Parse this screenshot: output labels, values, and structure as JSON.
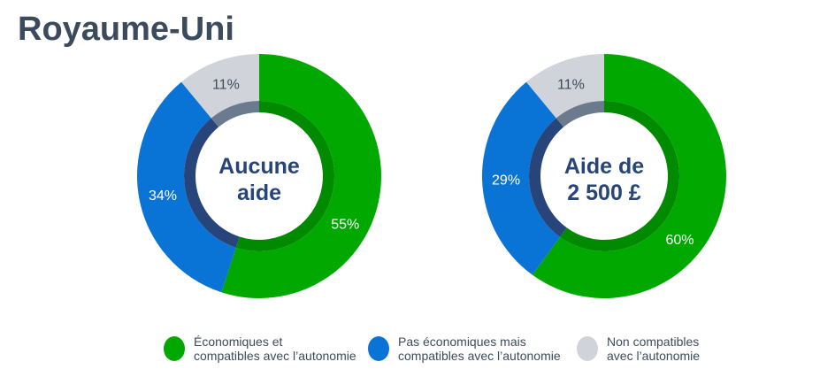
{
  "title": "Royaume-Uni",
  "chart_data": [
    {
      "type": "pie",
      "donut": true,
      "center_label": [
        "Aucune",
        "aide"
      ],
      "categories": [
        "Économiques et compatibles avec l’autonomie",
        "Pas économiques mais compatibles avec l’autonomie",
        "Non compatibles avec l’autonomie"
      ],
      "values": [
        55,
        34,
        11
      ],
      "data_labels": [
        "55%",
        "34%",
        "11%"
      ]
    },
    {
      "type": "pie",
      "donut": true,
      "center_label": [
        "Aide de",
        "2 500 £"
      ],
      "categories": [
        "Économiques et compatibles avec l’autonomie",
        "Pas économiques mais compatibles avec l’autonomie",
        "Non compatibles avec l’autonomie"
      ],
      "values": [
        60,
        29,
        11
      ],
      "data_labels": [
        "60%",
        "29%",
        "11%"
      ]
    }
  ],
  "legend": {
    "placement": "bottom",
    "items": [
      {
        "lines": [
          "Économiques et",
          "compatibles avec l’autonomie"
        ],
        "color": "#00a800",
        "inner_color": "#008a00"
      },
      {
        "lines": [
          "Pas économiques mais",
          "compatibles avec l’autonomie"
        ],
        "color": "#0a74d6",
        "inner_color": "#27457a"
      },
      {
        "lines": [
          "Non compatibles",
          "avec l’autonomie"
        ],
        "color": "#d0d3d9",
        "inner_color": "#6b7a8d"
      }
    ]
  },
  "colors": {
    "title": "#3b4b5d",
    "center_text": "#27457a"
  }
}
